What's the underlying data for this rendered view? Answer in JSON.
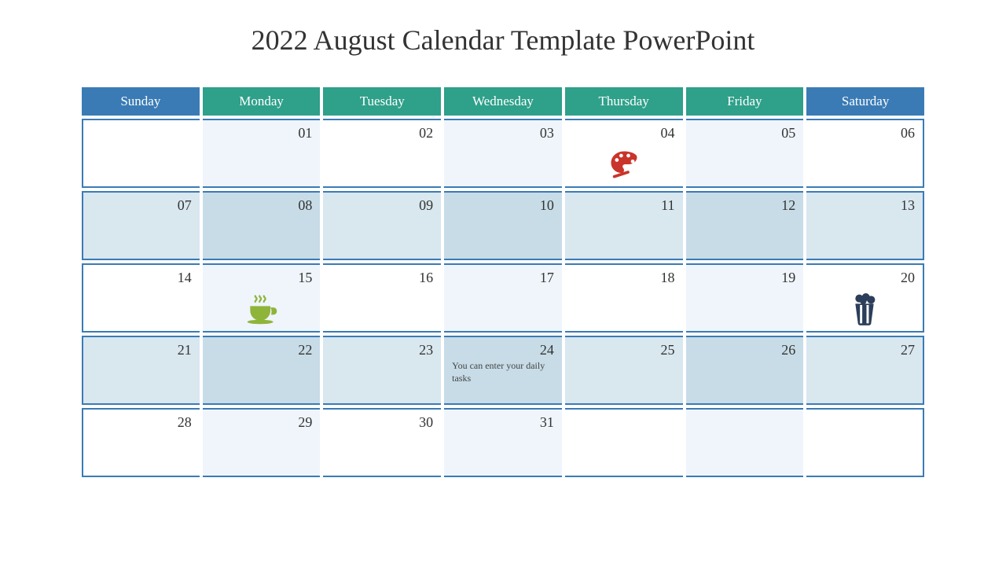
{
  "title": "2022 August Calendar Template PowerPoint",
  "colors": {
    "header_blue": "#3a7bb5",
    "header_teal": "#2fa08a",
    "border": "#3a7bb5",
    "cell_white": "#ffffff",
    "cell_pale": "#eff5fb",
    "cell_blue_light": "#d9e7ef",
    "cell_blue_mid": "#c7dce7",
    "icon_red": "#c9342b",
    "icon_green": "#8fb43a",
    "icon_navy": "#2c3e5a",
    "text": "#333333"
  },
  "day_headers": [
    "Sunday",
    "Monday",
    "Tuesday",
    "Wednesday",
    "Thursday",
    "Friday",
    "Saturday"
  ],
  "header_color_map": [
    "header_blue",
    "header_teal",
    "header_teal",
    "header_teal",
    "header_teal",
    "header_teal",
    "header_blue"
  ],
  "weeks": [
    [
      {
        "num": "",
        "bg": "cell_white"
      },
      {
        "num": "01",
        "bg": "cell_pale"
      },
      {
        "num": "02",
        "bg": "cell_white"
      },
      {
        "num": "03",
        "bg": "cell_pale"
      },
      {
        "num": "04",
        "bg": "cell_white",
        "icon": "palette"
      },
      {
        "num": "05",
        "bg": "cell_pale"
      },
      {
        "num": "06",
        "bg": "cell_white"
      }
    ],
    [
      {
        "num": "07",
        "bg": "cell_blue_light"
      },
      {
        "num": "08",
        "bg": "cell_blue_mid"
      },
      {
        "num": "09",
        "bg": "cell_blue_light"
      },
      {
        "num": "10",
        "bg": "cell_blue_mid"
      },
      {
        "num": "11",
        "bg": "cell_blue_light"
      },
      {
        "num": "12",
        "bg": "cell_blue_mid"
      },
      {
        "num": "13",
        "bg": "cell_blue_light"
      }
    ],
    [
      {
        "num": "14",
        "bg": "cell_white"
      },
      {
        "num": "15",
        "bg": "cell_pale",
        "icon": "coffee"
      },
      {
        "num": "16",
        "bg": "cell_white"
      },
      {
        "num": "17",
        "bg": "cell_pale"
      },
      {
        "num": "18",
        "bg": "cell_white"
      },
      {
        "num": "19",
        "bg": "cell_pale"
      },
      {
        "num": "20",
        "bg": "cell_white",
        "icon": "popcorn"
      }
    ],
    [
      {
        "num": "21",
        "bg": "cell_blue_light"
      },
      {
        "num": "22",
        "bg": "cell_blue_mid"
      },
      {
        "num": "23",
        "bg": "cell_blue_light"
      },
      {
        "num": "24",
        "bg": "cell_blue_mid",
        "note": "You can enter your daily tasks"
      },
      {
        "num": "25",
        "bg": "cell_blue_light"
      },
      {
        "num": "26",
        "bg": "cell_blue_mid"
      },
      {
        "num": "27",
        "bg": "cell_blue_light"
      }
    ],
    [
      {
        "num": "28",
        "bg": "cell_white"
      },
      {
        "num": "29",
        "bg": "cell_pale"
      },
      {
        "num": "30",
        "bg": "cell_white"
      },
      {
        "num": "31",
        "bg": "cell_pale"
      },
      {
        "num": "",
        "bg": "cell_white"
      },
      {
        "num": "",
        "bg": "cell_pale"
      },
      {
        "num": "",
        "bg": "cell_white"
      }
    ]
  ],
  "icons": {
    "palette": {
      "color_key": "icon_red",
      "name": "palette-icon"
    },
    "coffee": {
      "color_key": "icon_green",
      "name": "coffee-icon"
    },
    "popcorn": {
      "color_key": "icon_navy",
      "name": "popcorn-icon"
    }
  }
}
